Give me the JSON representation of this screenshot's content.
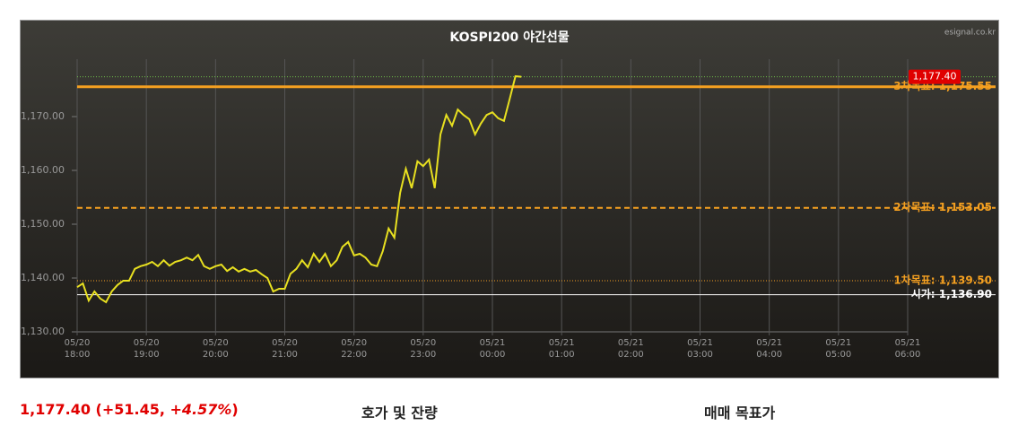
{
  "chart_data": {
    "type": "line",
    "title": "KOSPI200 야간선물",
    "source": "esignal.co.kr",
    "x": [
      "05/20 18:00",
      "05/20 18:05",
      "05/20 18:10",
      "05/20 18:15",
      "05/20 18:20",
      "05/20 18:25",
      "05/20 18:30",
      "05/20 18:35",
      "05/20 18:40",
      "05/20 18:45",
      "05/20 18:50",
      "05/20 18:55",
      "05/20 19:00",
      "05/20 19:05",
      "05/20 19:10",
      "05/20 19:15",
      "05/20 19:20",
      "05/20 19:25",
      "05/20 19:30",
      "05/20 19:35",
      "05/20 19:40",
      "05/20 19:45",
      "05/20 19:50",
      "05/20 19:55",
      "05/20 20:00",
      "05/20 20:05",
      "05/20 20:10",
      "05/20 20:15",
      "05/20 20:20",
      "05/20 20:25",
      "05/20 20:30",
      "05/20 20:35",
      "05/20 20:40",
      "05/20 20:45",
      "05/20 20:50",
      "05/20 20:55",
      "05/20 21:00",
      "05/20 21:05",
      "05/20 21:10",
      "05/20 21:15",
      "05/20 21:20",
      "05/20 21:25",
      "05/20 21:30",
      "05/20 21:35",
      "05/20 21:40",
      "05/20 21:45",
      "05/20 21:50",
      "05/20 21:55",
      "05/20 22:00",
      "05/20 22:05",
      "05/20 22:10",
      "05/20 22:15",
      "05/20 22:20",
      "05/20 22:25",
      "05/20 22:30",
      "05/20 22:35",
      "05/20 22:40",
      "05/20 22:45",
      "05/20 22:50",
      "05/20 22:55",
      "05/20 23:00",
      "05/20 23:05",
      "05/20 23:10",
      "05/20 23:15",
      "05/20 23:20",
      "05/20 23:25",
      "05/20 23:30",
      "05/20 23:35",
      "05/20 23:40",
      "05/20 23:45",
      "05/20 23:50",
      "05/20 23:55",
      "05/21 00:00",
      "05/21 00:05",
      "05/21 00:10",
      "05/21 00:15",
      "05/21 00:20",
      "05/21 00:25"
    ],
    "series": [
      {
        "color": "#e8e020",
        "values": [
          1138.3,
          1139.0,
          1135.8,
          1137.5,
          1136.2,
          1135.5,
          1137.5,
          1138.7,
          1139.5,
          1139.5,
          1141.7,
          1142.2,
          1142.5,
          1143.0,
          1142.2,
          1143.3,
          1142.3,
          1143.0,
          1143.3,
          1143.8,
          1143.3,
          1144.3,
          1142.2,
          1141.7,
          1142.2,
          1142.5,
          1141.3,
          1142.0,
          1141.2,
          1141.7,
          1141.2,
          1141.5,
          1140.7,
          1140.0,
          1137.5,
          1138.0,
          1138.0,
          1140.8,
          1141.7,
          1143.3,
          1142.0,
          1144.5,
          1143.0,
          1144.5,
          1142.2,
          1143.3,
          1145.8,
          1146.7,
          1144.2,
          1144.5,
          1143.8,
          1142.5,
          1142.2,
          1145.0,
          1149.2,
          1147.5,
          1155.8,
          1160.3,
          1156.7,
          1161.7,
          1160.8,
          1162.0,
          1156.7,
          1166.7,
          1170.3,
          1168.3,
          1171.3,
          1170.3,
          1169.5,
          1166.7,
          1168.7,
          1170.3,
          1170.8,
          1169.7,
          1169.2,
          1173.3,
          1177.5,
          1177.4
        ]
      }
    ],
    "xlim": [
      "05/20 18:00",
      "05/21 06:00"
    ],
    "xticks": [
      {
        "value": "05/20 18:00",
        "label": "05/20\n18:00"
      },
      {
        "value": "05/20 19:00",
        "label": "05/20\n19:00"
      },
      {
        "value": "05/20 20:00",
        "label": "05/20\n20:00"
      },
      {
        "value": "05/20 21:00",
        "label": "05/20\n21:00"
      },
      {
        "value": "05/20 22:00",
        "label": "05/20\n22:00"
      },
      {
        "value": "05/20 23:00",
        "label": "05/20\n23:00"
      },
      {
        "value": "05/21 00:00",
        "label": "05/21\n00:00"
      },
      {
        "value": "05/21 01:00",
        "label": "05/21\n01:00"
      },
      {
        "value": "05/21 02:00",
        "label": "05/21\n02:00"
      },
      {
        "value": "05/21 03:00",
        "label": "05/21\n03:00"
      },
      {
        "value": "05/21 04:00",
        "label": "05/21\n04:00"
      },
      {
        "value": "05/21 05:00",
        "label": "05/21\n05:00"
      },
      {
        "value": "05/21 06:00",
        "label": "05/21\n06:00"
      }
    ],
    "ylim": [
      1130,
      1180
    ],
    "yticks": [
      {
        "value": 1130,
        "label": "1,130.00"
      },
      {
        "value": 1140,
        "label": "1,140.00"
      },
      {
        "value": 1150,
        "label": "1,150.00"
      },
      {
        "value": 1160,
        "label": "1,160.00"
      },
      {
        "value": 1170,
        "label": "1,170.00"
      }
    ],
    "grid": true,
    "reference_lines": [
      {
        "value": 1177.4,
        "color": "#6fc24a",
        "style": "dotted"
      },
      {
        "value": 1175.55,
        "label": "3차목표: 1,175.55",
        "color": "#f5a020",
        "style": "thick"
      },
      {
        "value": 1153.05,
        "label": "2차목표: 1,153.05",
        "color": "#f5a020",
        "style": "dashed"
      },
      {
        "value": 1139.5,
        "label": "1차목표: 1,139.50",
        "color": "#f5a020",
        "style": "dotted"
      },
      {
        "value": 1136.9,
        "label": "시가: 1,136.90",
        "color": "#ffffff",
        "style": "solid"
      }
    ],
    "last_tag": {
      "value": 1177.4,
      "label": "1,177.40",
      "color": "#e00000"
    }
  },
  "footer": {
    "quote_main": "1,177.40 (+51.45, ",
    "quote_pct": "+4.57%",
    "quote_tail": ")",
    "tab1": "호가 및 잔량",
    "tab2": "매매 목표가"
  }
}
